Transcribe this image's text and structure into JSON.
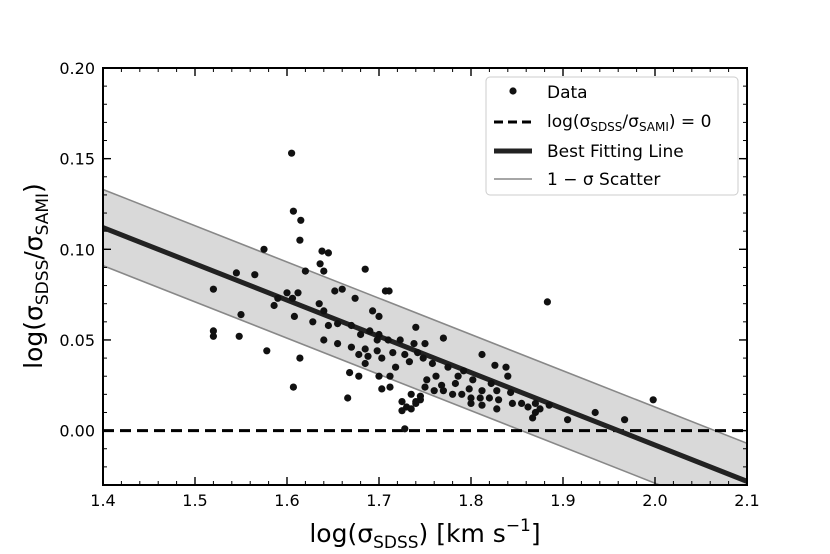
{
  "chart_data": {
    "type": "scatter",
    "title": "",
    "xlabel": {
      "prefix": "log(σ",
      "sub": "SDSS",
      "suffix": ") [km s",
      "sup": "−1",
      "end": "]"
    },
    "ylabel": {
      "prefix": "log(σ",
      "sub1": "SDSS",
      "mid": "/σ",
      "sub2": "SAMI",
      "suffix": ")"
    },
    "xlim": [
      1.4,
      2.1
    ],
    "ylim": [
      -0.03,
      0.2
    ],
    "x_ticks": [
      1.4,
      1.5,
      1.6,
      1.7,
      1.8,
      1.9,
      2.0,
      2.1
    ],
    "x_tick_labels": [
      "1.4",
      "1.5",
      "1.6",
      "1.7",
      "1.8",
      "1.9",
      "2.0",
      "2.1"
    ],
    "y_ticks": [
      0.0,
      0.05,
      0.1,
      0.15,
      0.2
    ],
    "y_tick_labels": [
      "0.00",
      "0.05",
      "0.10",
      "0.15",
      "0.20"
    ],
    "x_minor_step": 0.02,
    "y_minor_step": 0.01,
    "legend_position": "top-right",
    "legend": {
      "data": "Data",
      "zero": {
        "prefix": "log(σ",
        "sub1": "SDSS",
        "mid": "/σ",
        "sub2": "SAMI",
        "suffix": ") = 0"
      },
      "fit": "Best Fitting Line",
      "scatter": "1 − σ Scatter"
    },
    "best_fit": {
      "slope": -0.2,
      "intercept": 0.392
    },
    "scatter_band": 0.021,
    "zero_line": 0.0,
    "colors": {
      "points": "#111111",
      "fit_line": "#222222",
      "band_fill": "#d9d9d9",
      "band_edge": "#888888",
      "zero_line": "#000000"
    },
    "series": [
      {
        "name": "Data",
        "points": [
          [
            1.605,
            0.153
          ],
          [
            1.607,
            0.121
          ],
          [
            1.615,
            0.116
          ],
          [
            1.614,
            0.105
          ],
          [
            1.575,
            0.1
          ],
          [
            1.638,
            0.099
          ],
          [
            1.645,
            0.098
          ],
          [
            1.636,
            0.092
          ],
          [
            1.685,
            0.089
          ],
          [
            1.64,
            0.088
          ],
          [
            1.62,
            0.088
          ],
          [
            1.545,
            0.087
          ],
          [
            1.565,
            0.086
          ],
          [
            1.6,
            0.076
          ],
          [
            1.612,
            0.076
          ],
          [
            1.66,
            0.078
          ],
          [
            1.707,
            0.077
          ],
          [
            1.711,
            0.077
          ],
          [
            1.652,
            0.077
          ],
          [
            1.59,
            0.073
          ],
          [
            1.606,
            0.073
          ],
          [
            1.635,
            0.07
          ],
          [
            1.674,
            0.073
          ],
          [
            1.586,
            0.069
          ],
          [
            1.64,
            0.066
          ],
          [
            1.693,
            0.066
          ],
          [
            1.7,
            0.063
          ],
          [
            1.608,
            0.063
          ],
          [
            1.55,
            0.064
          ],
          [
            1.52,
            0.078
          ],
          [
            1.883,
            0.071
          ],
          [
            1.628,
            0.06
          ],
          [
            1.645,
            0.058
          ],
          [
            1.655,
            0.059
          ],
          [
            1.67,
            0.058
          ],
          [
            1.74,
            0.057
          ],
          [
            1.77,
            0.051
          ],
          [
            1.68,
            0.053
          ],
          [
            1.69,
            0.055
          ],
          [
            1.7,
            0.053
          ],
          [
            1.71,
            0.05
          ],
          [
            1.723,
            0.05
          ],
          [
            1.738,
            0.048
          ],
          [
            1.75,
            0.048
          ],
          [
            1.64,
            0.05
          ],
          [
            1.655,
            0.048
          ],
          [
            1.67,
            0.046
          ],
          [
            1.685,
            0.045
          ],
          [
            1.698,
            0.044
          ],
          [
            1.715,
            0.043
          ],
          [
            1.728,
            0.042
          ],
          [
            1.742,
            0.043
          ],
          [
            1.52,
            0.055
          ],
          [
            1.52,
            0.052
          ],
          [
            1.548,
            0.052
          ],
          [
            1.578,
            0.044
          ],
          [
            1.614,
            0.04
          ],
          [
            1.733,
            0.038
          ],
          [
            1.748,
            0.04
          ],
          [
            1.758,
            0.037
          ],
          [
            1.775,
            0.035
          ],
          [
            1.792,
            0.033
          ],
          [
            1.812,
            0.042
          ],
          [
            1.826,
            0.036
          ],
          [
            1.838,
            0.035
          ],
          [
            1.703,
            0.04
          ],
          [
            1.718,
            0.035
          ],
          [
            1.685,
            0.037
          ],
          [
            1.668,
            0.032
          ],
          [
            1.678,
            0.03
          ],
          [
            1.7,
            0.03
          ],
          [
            1.712,
            0.03
          ],
          [
            1.762,
            0.03
          ],
          [
            1.786,
            0.03
          ],
          [
            1.802,
            0.028
          ],
          [
            1.822,
            0.026
          ],
          [
            1.84,
            0.03
          ],
          [
            1.752,
            0.028
          ],
          [
            1.768,
            0.025
          ],
          [
            1.783,
            0.026
          ],
          [
            1.798,
            0.023
          ],
          [
            1.812,
            0.022
          ],
          [
            1.828,
            0.022
          ],
          [
            1.843,
            0.021
          ],
          [
            1.75,
            0.024
          ],
          [
            1.76,
            0.022
          ],
          [
            1.77,
            0.022
          ],
          [
            1.78,
            0.02
          ],
          [
            1.79,
            0.02
          ],
          [
            1.8,
            0.018
          ],
          [
            1.81,
            0.018
          ],
          [
            1.82,
            0.018
          ],
          [
            1.83,
            0.017
          ],
          [
            1.845,
            0.015
          ],
          [
            1.855,
            0.015
          ],
          [
            1.87,
            0.015
          ],
          [
            1.885,
            0.014
          ],
          [
            1.703,
            0.023
          ],
          [
            1.712,
            0.024
          ],
          [
            1.735,
            0.02
          ],
          [
            1.745,
            0.019
          ],
          [
            1.725,
            0.016
          ],
          [
            1.74,
            0.016
          ],
          [
            1.73,
            0.013
          ],
          [
            1.735,
            0.012
          ],
          [
            1.725,
            0.011
          ],
          [
            1.74,
            0.015
          ],
          [
            1.745,
            0.017
          ],
          [
            1.8,
            0.015
          ],
          [
            1.812,
            0.014
          ],
          [
            1.828,
            0.012
          ],
          [
            1.862,
            0.013
          ],
          [
            1.87,
            0.01
          ],
          [
            1.875,
            0.012
          ],
          [
            1.867,
            0.007
          ],
          [
            1.905,
            0.006
          ],
          [
            1.935,
            0.01
          ],
          [
            1.967,
            0.006
          ],
          [
            1.998,
            0.017
          ],
          [
            1.607,
            0.024
          ],
          [
            1.666,
            0.018
          ],
          [
            1.728,
            0.001
          ],
          [
            1.698,
            0.05
          ],
          [
            1.688,
            0.041
          ],
          [
            1.678,
            0.042
          ]
        ]
      }
    ]
  }
}
